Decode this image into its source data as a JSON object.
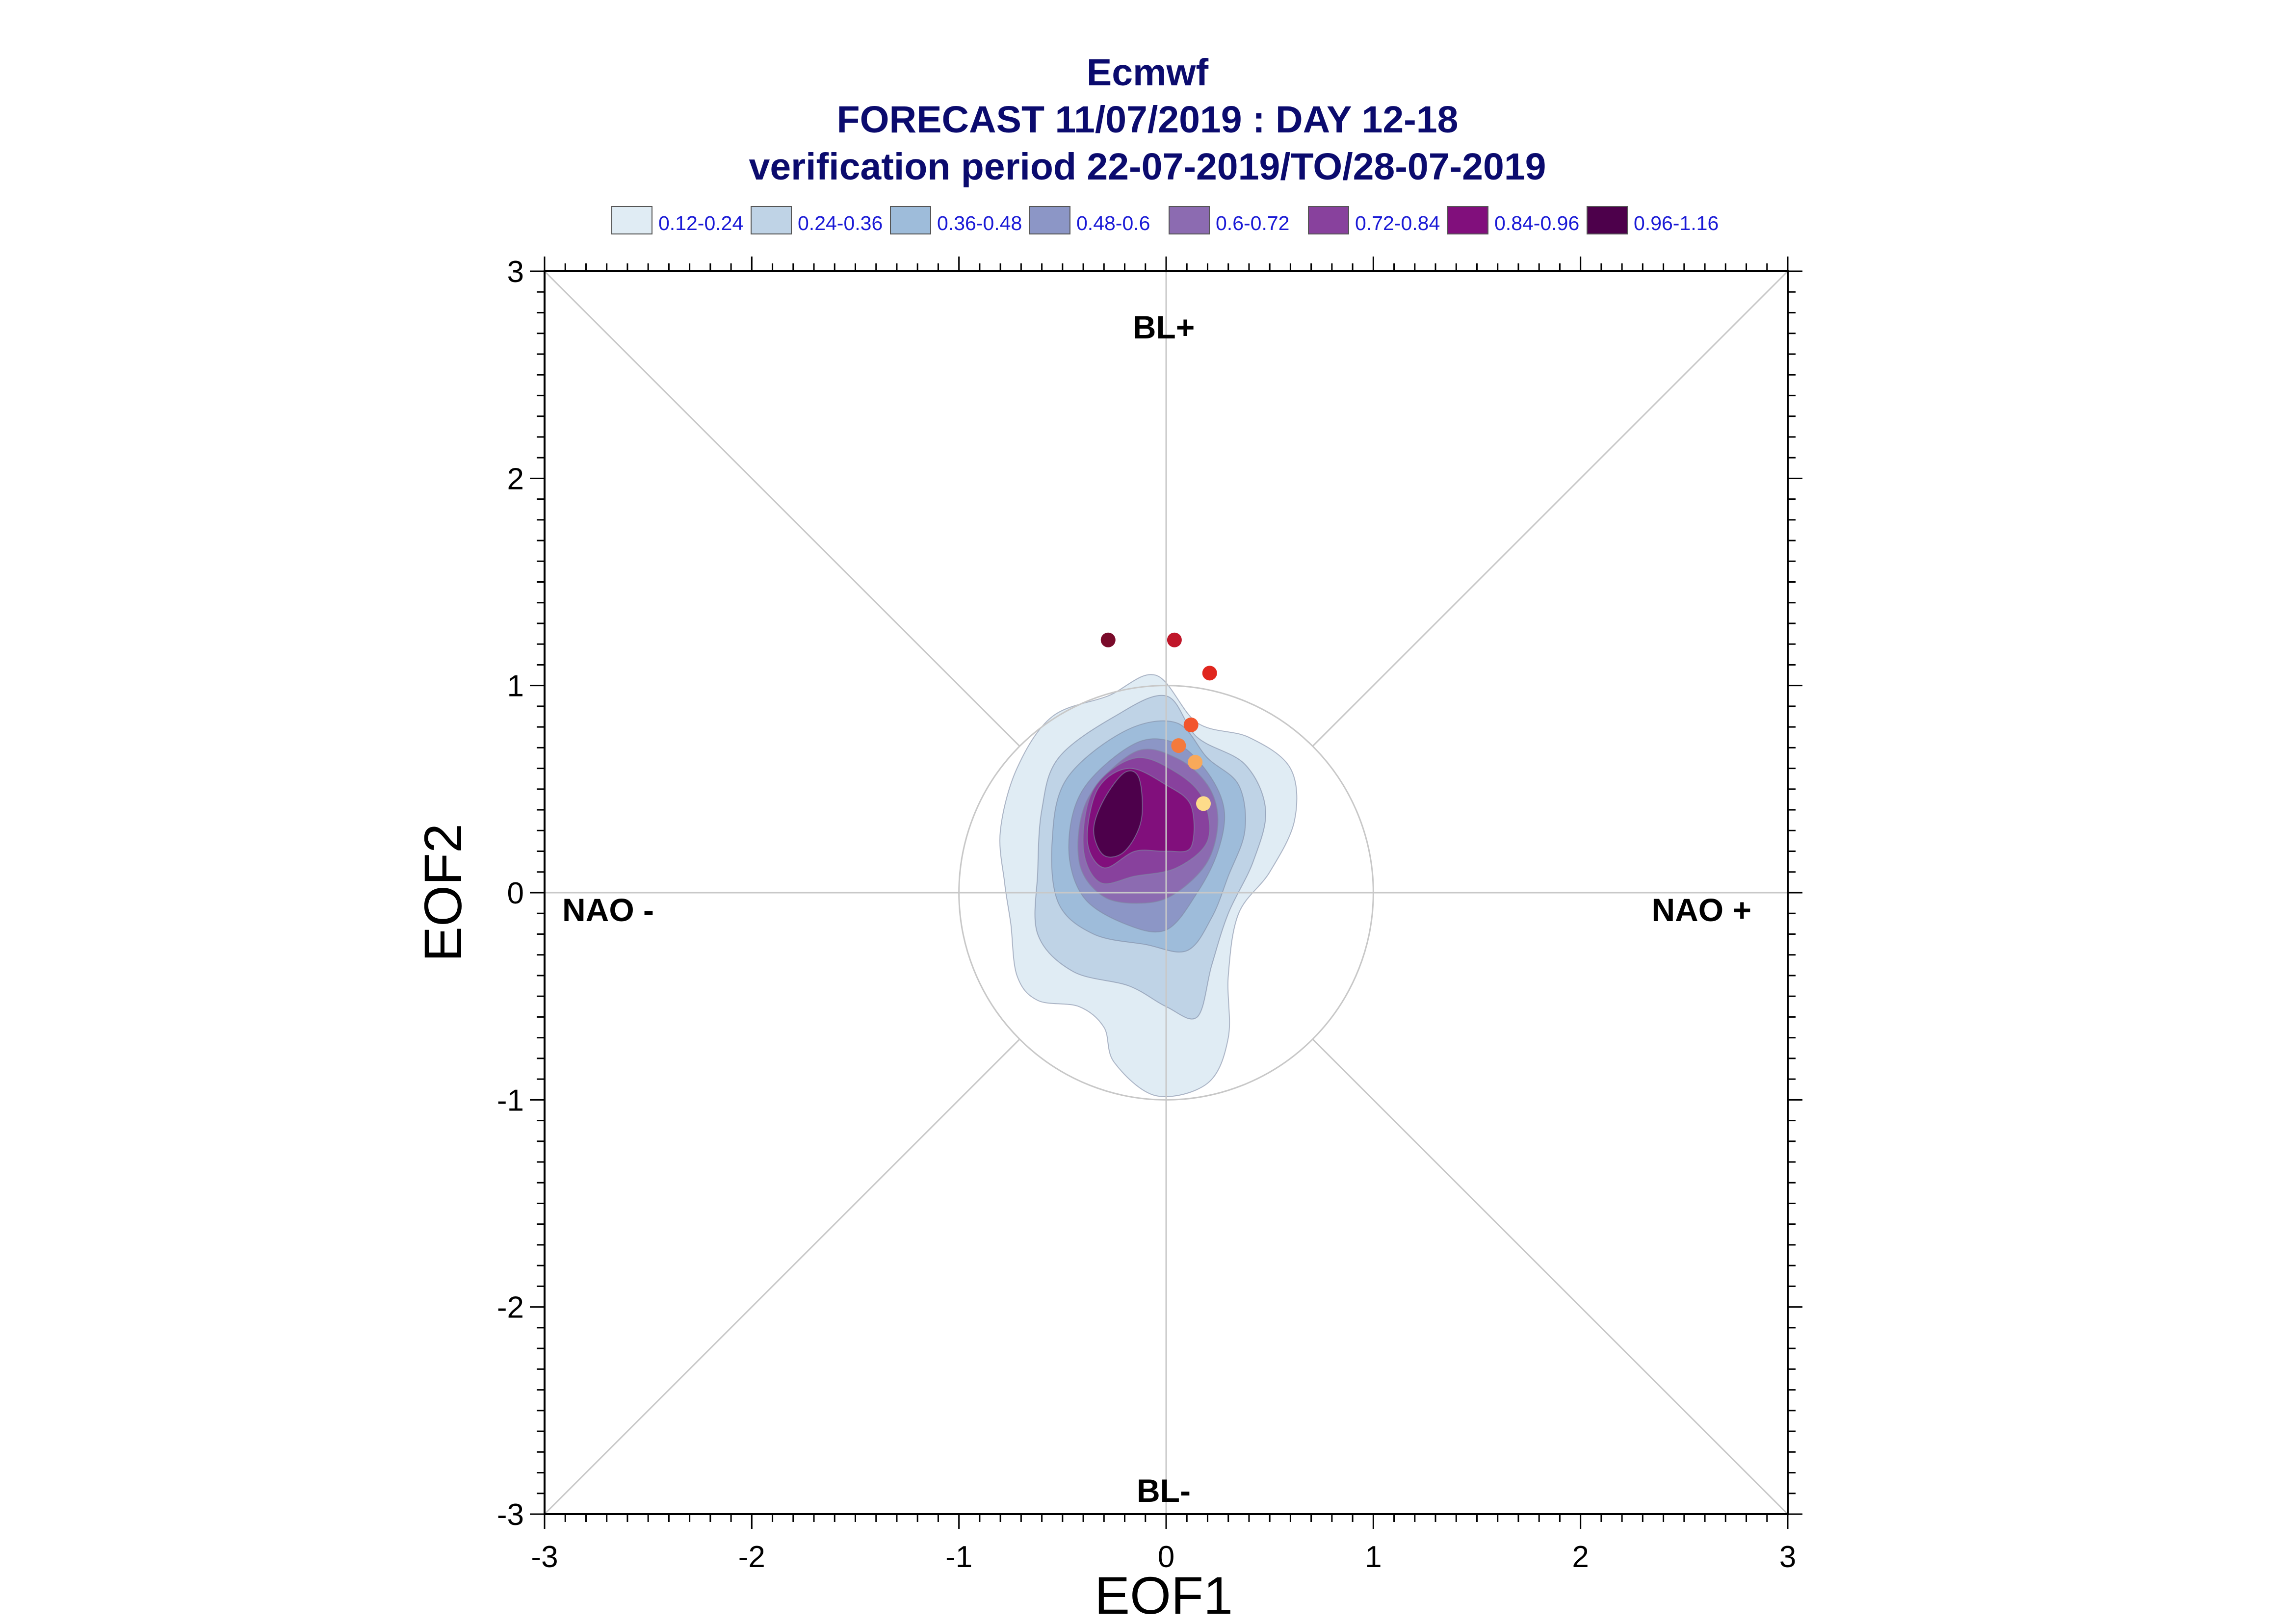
{
  "title": {
    "line1": "Ecmwf",
    "line2": "FORECAST 11/07/2019 : DAY 12-18",
    "line3": "verification period 22-07-2019/TO/28-07-2019"
  },
  "colors": {
    "title": "#0b0b6e",
    "legend_text": "#1a1ad6",
    "reference_lines": "#c8c8c8",
    "axes": "#000000"
  },
  "chart_data": {
    "type": "contour-scatter",
    "xlabel": "EOF1",
    "ylabel": "EOF2",
    "xlim": [
      -3,
      3
    ],
    "ylim": [
      -3,
      3
    ],
    "x_ticks": [
      "-3",
      "-2",
      "-1",
      "0",
      "1",
      "2",
      "3"
    ],
    "y_ticks": [
      "-3",
      "-2",
      "-1",
      "0",
      "1",
      "2",
      "3"
    ],
    "quadrant_labels": {
      "top": "BL+",
      "bottom": "BL-",
      "left": "NAO -",
      "right": "NAO +"
    },
    "reference_circle_radius": 1,
    "legend": [
      {
        "label": "0.12-0.24",
        "color": "#e0ecf4"
      },
      {
        "label": "0.24-0.36",
        "color": "#bfd3e6"
      },
      {
        "label": "0.36-0.48",
        "color": "#9ebcda"
      },
      {
        "label": "0.48-0.6",
        "color": "#8c96c6"
      },
      {
        "label": "0.6-0.72",
        "color": "#8c6bb1"
      },
      {
        "label": "0.72-0.84",
        "color": "#88419d"
      },
      {
        "label": "0.84-0.96",
        "color": "#810f7c"
      },
      {
        "label": "0.96-1.16",
        "color": "#4d004b"
      }
    ],
    "density_contours": [
      {
        "level": "0.12-0.24",
        "color": "#e0ecf4",
        "points": [
          [
            -0.28,
            0.95
          ],
          [
            -0.05,
            1.05
          ],
          [
            0.15,
            0.82
          ],
          [
            0.4,
            0.75
          ],
          [
            0.6,
            0.6
          ],
          [
            0.62,
            0.35
          ],
          [
            0.5,
            0.1
          ],
          [
            0.35,
            -0.1
          ],
          [
            0.3,
            -0.4
          ],
          [
            0.3,
            -0.7
          ],
          [
            0.2,
            -0.92
          ],
          [
            -0.05,
            -0.98
          ],
          [
            -0.25,
            -0.82
          ],
          [
            -0.3,
            -0.65
          ],
          [
            -0.42,
            -0.55
          ],
          [
            -0.62,
            -0.52
          ],
          [
            -0.72,
            -0.4
          ],
          [
            -0.75,
            -0.15
          ],
          [
            -0.78,
            0.05
          ],
          [
            -0.8,
            0.3
          ],
          [
            -0.72,
            0.6
          ],
          [
            -0.55,
            0.85
          ]
        ]
      },
      {
        "level": "0.24-0.36",
        "color": "#bfd3e6",
        "points": [
          [
            -0.25,
            0.85
          ],
          [
            0.0,
            0.95
          ],
          [
            0.15,
            0.75
          ],
          [
            0.38,
            0.62
          ],
          [
            0.48,
            0.4
          ],
          [
            0.42,
            0.15
          ],
          [
            0.3,
            -0.1
          ],
          [
            0.22,
            -0.35
          ],
          [
            0.15,
            -0.6
          ],
          [
            0.0,
            -0.55
          ],
          [
            -0.18,
            -0.45
          ],
          [
            -0.45,
            -0.38
          ],
          [
            -0.62,
            -0.2
          ],
          [
            -0.62,
            0.1
          ],
          [
            -0.6,
            0.4
          ],
          [
            -0.52,
            0.65
          ]
        ]
      },
      {
        "level": "0.36-0.48",
        "color": "#9ebcda",
        "points": [
          [
            -0.2,
            0.78
          ],
          [
            0.05,
            0.82
          ],
          [
            0.2,
            0.65
          ],
          [
            0.35,
            0.52
          ],
          [
            0.38,
            0.3
          ],
          [
            0.3,
            0.08
          ],
          [
            0.22,
            -0.12
          ],
          [
            0.1,
            -0.28
          ],
          [
            -0.1,
            -0.25
          ],
          [
            -0.35,
            -0.2
          ],
          [
            -0.52,
            -0.05
          ],
          [
            -0.55,
            0.25
          ],
          [
            -0.48,
            0.55
          ]
        ]
      },
      {
        "level": "0.48-0.6",
        "color": "#8c96c6",
        "points": [
          [
            -0.15,
            0.72
          ],
          [
            0.05,
            0.72
          ],
          [
            0.2,
            0.58
          ],
          [
            0.28,
            0.4
          ],
          [
            0.25,
            0.2
          ],
          [
            0.15,
            0.0
          ],
          [
            0.0,
            -0.18
          ],
          [
            -0.2,
            -0.15
          ],
          [
            -0.4,
            -0.02
          ],
          [
            -0.47,
            0.22
          ],
          [
            -0.4,
            0.5
          ]
        ]
      },
      {
        "level": "0.6-0.72",
        "color": "#8c6bb1",
        "points": [
          [
            -0.15,
            0.68
          ],
          [
            0.05,
            0.65
          ],
          [
            0.2,
            0.52
          ],
          [
            0.25,
            0.35
          ],
          [
            0.2,
            0.15
          ],
          [
            0.05,
            0.0
          ],
          [
            -0.1,
            -0.05
          ],
          [
            -0.3,
            -0.02
          ],
          [
            -0.42,
            0.15
          ],
          [
            -0.38,
            0.45
          ]
        ]
      },
      {
        "level": "0.72-0.84",
        "color": "#88419d",
        "points": [
          [
            -0.15,
            0.65
          ],
          [
            0.05,
            0.58
          ],
          [
            0.18,
            0.45
          ],
          [
            0.2,
            0.25
          ],
          [
            0.05,
            0.12
          ],
          [
            -0.15,
            0.08
          ],
          [
            -0.32,
            0.05
          ],
          [
            -0.4,
            0.22
          ],
          [
            -0.35,
            0.5
          ]
        ]
      },
      {
        "level": "0.84-0.96",
        "color": "#810f7c",
        "points": [
          [
            -0.18,
            0.6
          ],
          [
            0.0,
            0.52
          ],
          [
            0.12,
            0.42
          ],
          [
            0.12,
            0.22
          ],
          [
            0.0,
            0.2
          ],
          [
            -0.15,
            0.2
          ],
          [
            -0.3,
            0.12
          ],
          [
            -0.38,
            0.25
          ],
          [
            -0.33,
            0.5
          ]
        ]
      },
      {
        "level": "0.96-1.16",
        "color": "#4d004b",
        "points": [
          [
            -0.2,
            0.58
          ],
          [
            -0.13,
            0.55
          ],
          [
            -0.12,
            0.35
          ],
          [
            -0.2,
            0.2
          ],
          [
            -0.3,
            0.18
          ],
          [
            -0.35,
            0.3
          ],
          [
            -0.3,
            0.45
          ]
        ]
      }
    ],
    "points": [
      {
        "x": -0.28,
        "y": 1.22,
        "color": "#7a0b2a"
      },
      {
        "x": 0.04,
        "y": 1.22,
        "color": "#c0172a"
      },
      {
        "x": 0.21,
        "y": 1.06,
        "color": "#e0261e"
      },
      {
        "x": 0.12,
        "y": 0.81,
        "color": "#f2552d"
      },
      {
        "x": 0.06,
        "y": 0.71,
        "color": "#f47a3c"
      },
      {
        "x": 0.14,
        "y": 0.63,
        "color": "#f8a95a"
      },
      {
        "x": 0.18,
        "y": 0.43,
        "color": "#fddc8a"
      }
    ]
  }
}
